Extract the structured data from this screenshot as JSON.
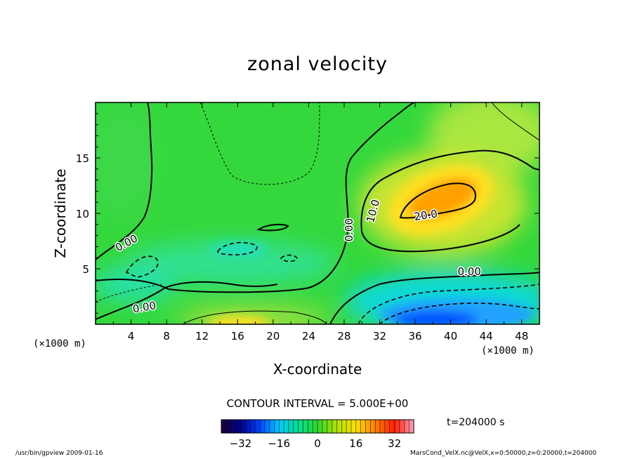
{
  "chart_data": {
    "type": "heatmap",
    "title": "zonal velocity",
    "xlabel": "X-coordinate",
    "ylabel": "Z-coordinate",
    "x_unit_label": "(×1000 m)",
    "x_ticks": [
      4,
      8,
      12,
      16,
      20,
      24,
      28,
      32,
      36,
      40,
      44,
      48
    ],
    "y_ticks": [
      5,
      10,
      15
    ],
    "xlim": [
      0,
      50
    ],
    "ylim": [
      0,
      20
    ],
    "contour_interval_text": "CONTOUR INTERVAL = 5.000E+00",
    "contour_labels": [
      {
        "text": "0.00",
        "x": 3.5,
        "z": 7.3,
        "angle": -28
      },
      {
        "text": "0.00",
        "x": 5.5,
        "z": 1.5,
        "angle": -10
      },
      {
        "text": "0.00",
        "x": 28.6,
        "z": 8.5,
        "angle": -90
      },
      {
        "text": "10.0",
        "x": 31.3,
        "z": 10.2,
        "angle": -75
      },
      {
        "text": "20.0",
        "x": 37.2,
        "z": 9.8,
        "angle": -8
      },
      {
        "text": "0.00",
        "x": 42.1,
        "z": 4.7,
        "angle": 0
      }
    ],
    "features": [
      {
        "name": "positive jet",
        "center_x": 39,
        "center_z": 11.5,
        "peak": 25
      },
      {
        "name": "negative near-surface jet",
        "center_x": 40,
        "center_z": 0.5,
        "peak": -20
      },
      {
        "name": "positive near-surface flow",
        "center_x": 18,
        "center_z": 0.3,
        "peak": 12
      },
      {
        "name": "weak negative band",
        "center_x": 16,
        "center_z": 6,
        "peak": -5
      }
    ],
    "colorbar": {
      "ticks": [
        -32,
        -16,
        0,
        16,
        32
      ],
      "range": [
        -40,
        40
      ],
      "colors": [
        "#1a0033",
        "#000088",
        "#0044ff",
        "#00c8ff",
        "#00e090",
        "#30d830",
        "#b0e000",
        "#ffe000",
        "#ff8000",
        "#ff2000",
        "#ff9ec0"
      ]
    },
    "time_label": "t=204000 s"
  },
  "footer": {
    "left": "/usr/bin/gpview   2009-01-16",
    "right": "MarsCond_VelX.nc@VelX,x=0:50000,z=0:20000,t=204000"
  }
}
